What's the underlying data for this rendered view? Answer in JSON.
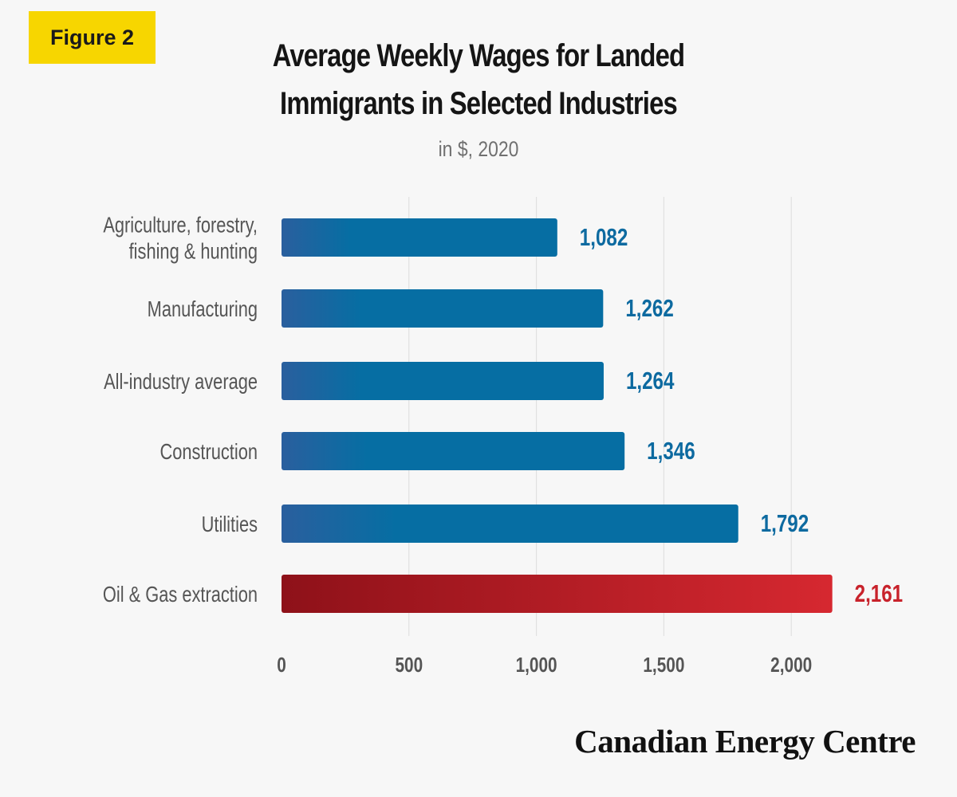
{
  "badge": "Figure 2",
  "title_lines": [
    "Average Weekly Wages for Landed",
    "Immigrants in Selected Industries"
  ],
  "subtitle": "in $, 2020",
  "brand": "Canadian Energy Centre",
  "colors": {
    "blue_dark": "#2a5f9e",
    "blue": "#066ea3",
    "red_dark": "#8e1119",
    "red": "#d62830",
    "label_text": "#555555",
    "value_blue": "#0d6aa0",
    "value_red": "#c8222b",
    "gridline": "#dddddd",
    "badge": "#f7d600"
  },
  "chart_data": {
    "type": "bar",
    "orientation": "horizontal",
    "title": "Average Weekly Wages for Landed Immigrants in Selected Industries",
    "subtitle": "in $, 2020",
    "categories": [
      [
        "Agriculture, forestry,",
        "fishing & hunting"
      ],
      [
        "Manufacturing"
      ],
      [
        "All-industry average"
      ],
      [
        "Construction"
      ],
      [
        "Utilities"
      ],
      [
        "Oil & Gas extraction"
      ]
    ],
    "values": [
      1082,
      1262,
      1264,
      1346,
      1792,
      2161
    ],
    "value_labels": [
      "1,082",
      "1,262",
      "1,264",
      "1,346",
      "1,792",
      "2,161"
    ],
    "highlight_index": 5,
    "xlim": [
      0,
      2000
    ],
    "x_ticks": [
      0,
      500,
      1000,
      1500,
      2000
    ],
    "x_tick_labels": [
      "0",
      "500",
      "1,000",
      "1,500",
      "2,000"
    ],
    "grid": true
  }
}
